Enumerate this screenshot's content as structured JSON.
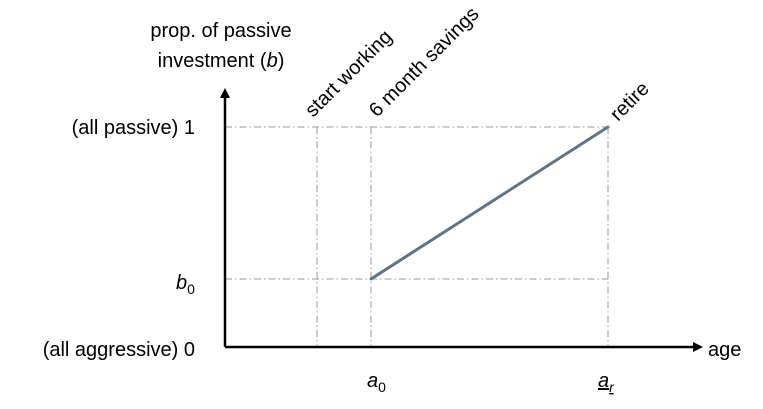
{
  "chart_data": {
    "type": "line",
    "ylabel_line1": "prop. of passive",
    "ylabel_line2_prefix": "investment (",
    "ylabel_line2_var": "b",
    "ylabel_line2_suffix": ")",
    "xlabel": "age",
    "y_ticks": {
      "top": "(all passive) 1",
      "b0_base": "b",
      "b0_sub": "0",
      "bottom": "(all aggressive) 0"
    },
    "x_ticks": {
      "a0_base": "a",
      "a0_sub": "0",
      "ar_base": "a",
      "ar_sub": "r"
    },
    "annotations": {
      "start_working": "start working",
      "six_month": "6 month savings",
      "retire": "retire"
    },
    "series": [
      {
        "x": [
          "a0",
          "ar"
        ],
        "y": [
          "b0",
          1
        ]
      }
    ],
    "colors": {
      "series": "#637383",
      "guides": "#9a9a9a",
      "axes": "#000000"
    }
  }
}
